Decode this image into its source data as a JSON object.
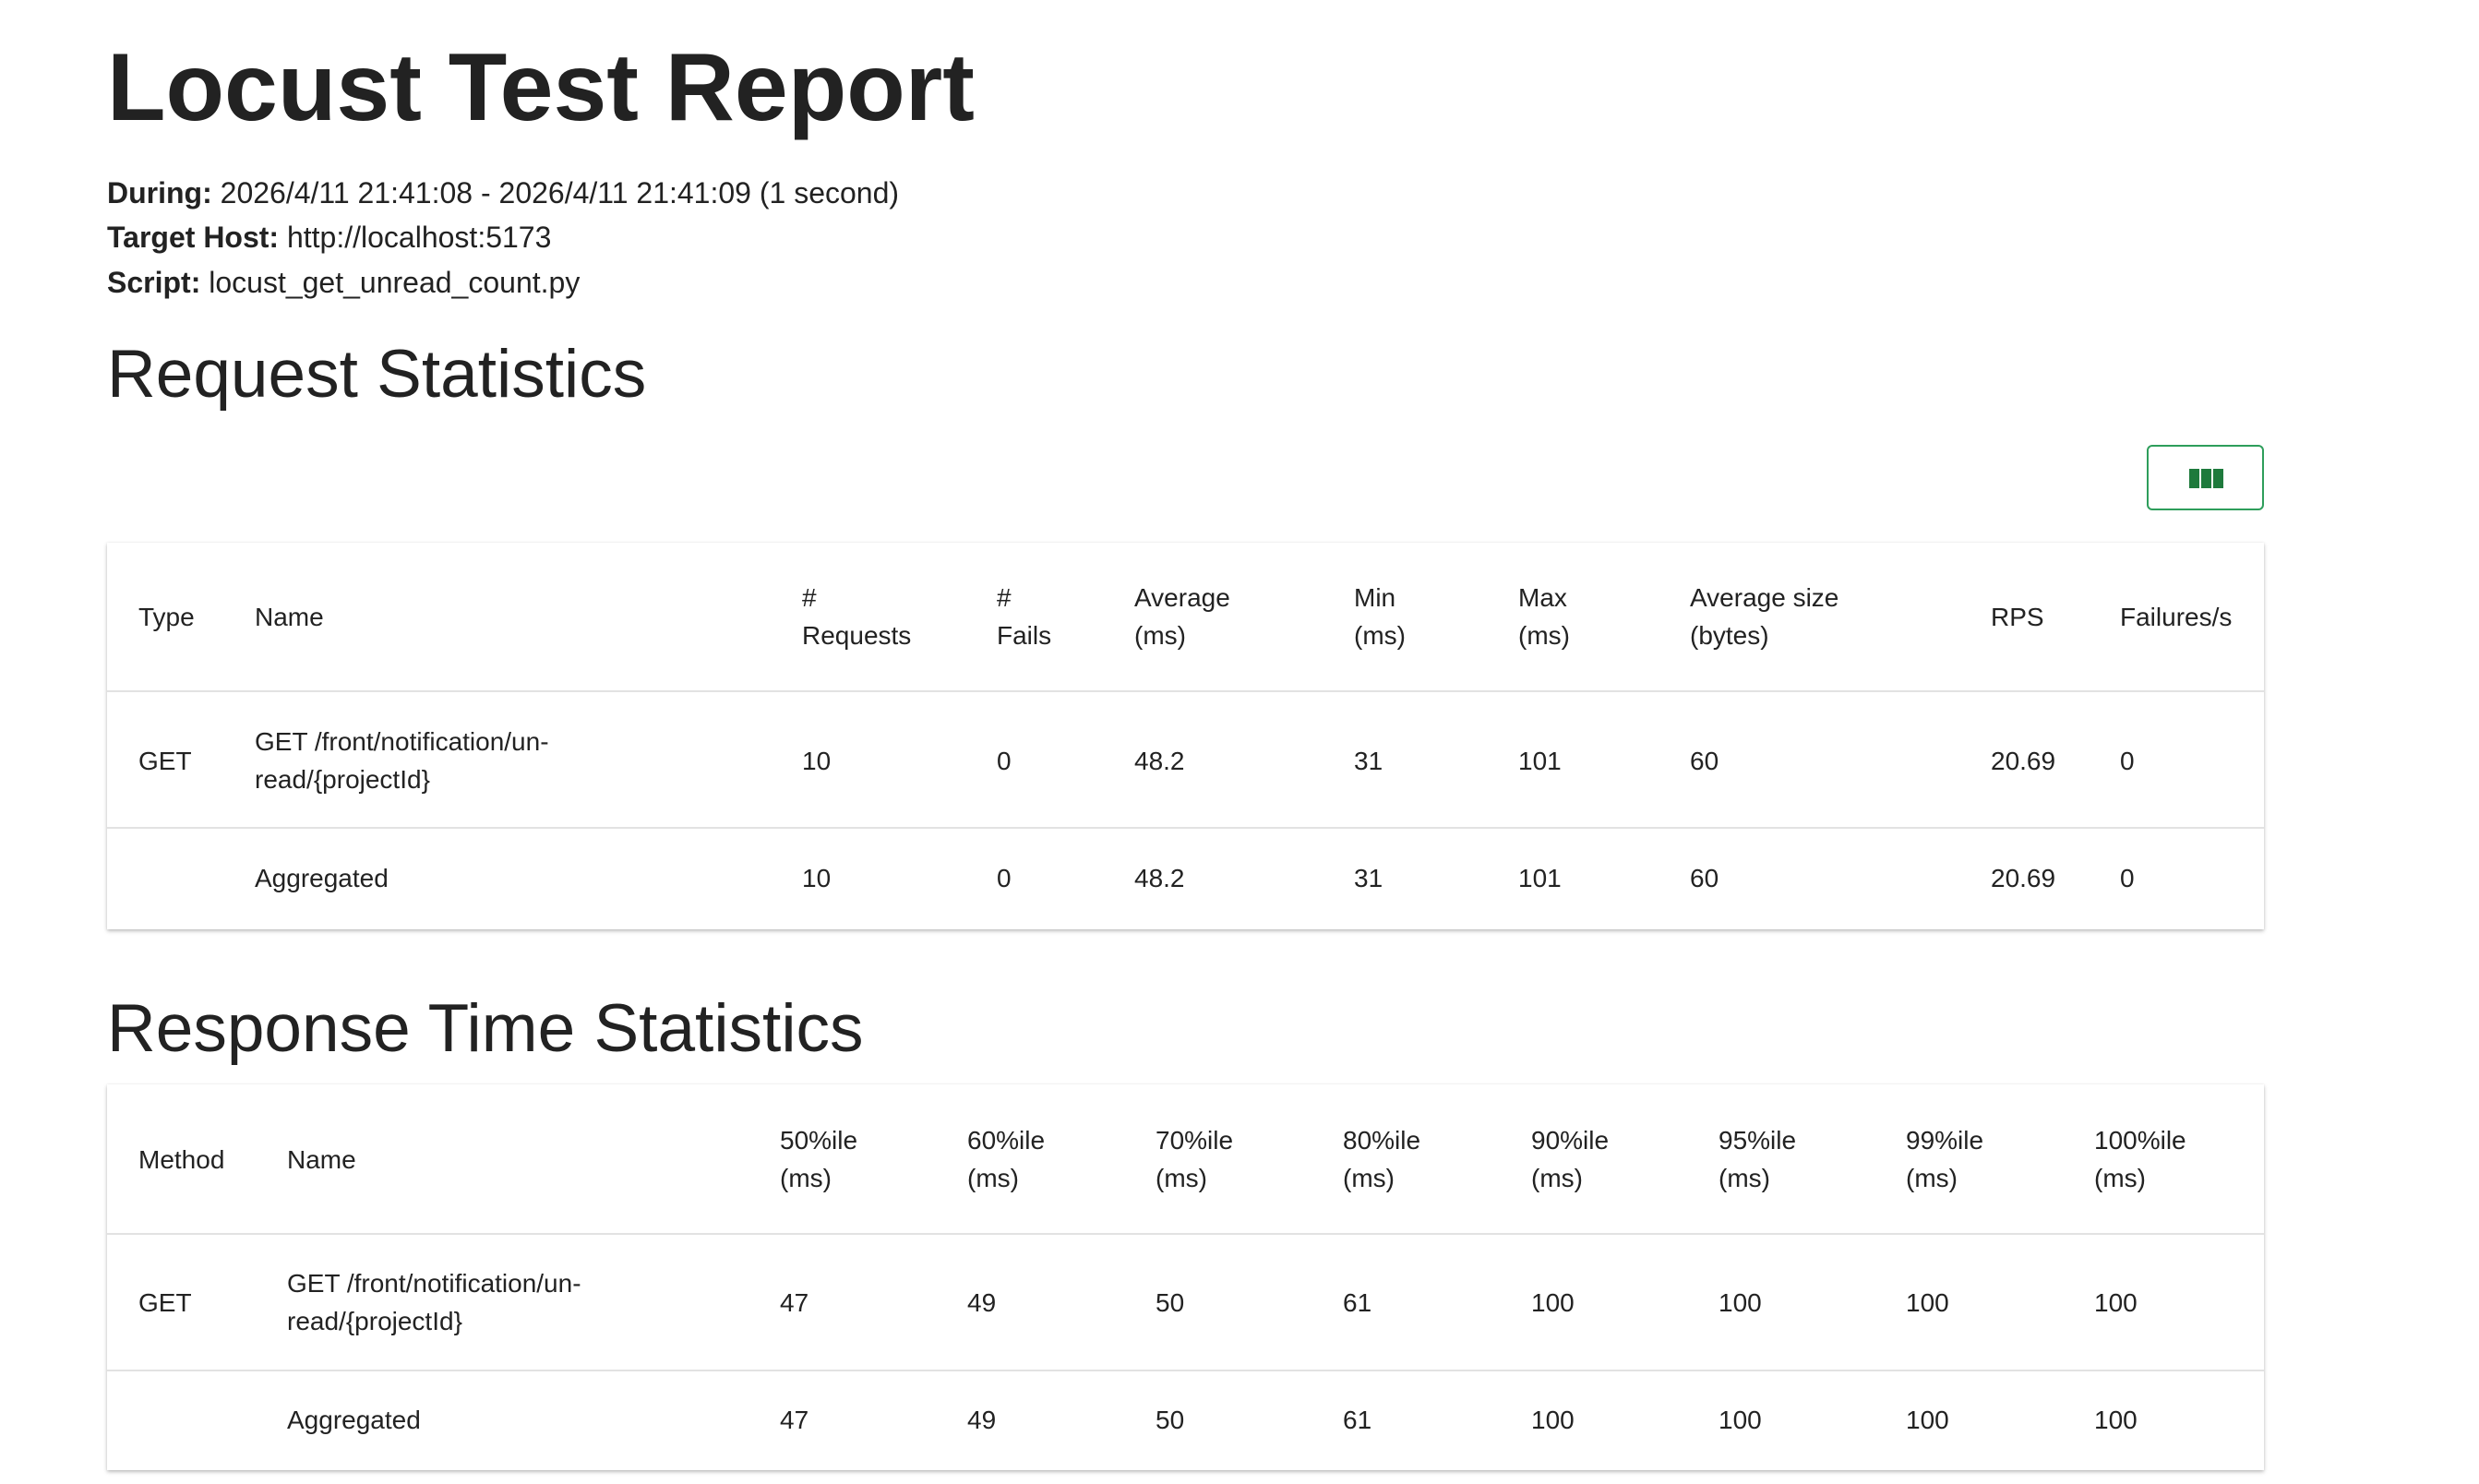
{
  "header": {
    "title": "Locust Test Report",
    "info": [
      {
        "label": "During:",
        "value": "2026/4/11 21:41:08 - 2026/4/11 21:41:09 (1 second)"
      },
      {
        "label": "Target Host:",
        "value": "http://localhost:5173"
      },
      {
        "label": "Script:",
        "value": "locust_get_unread_count.py"
      }
    ]
  },
  "request_stats": {
    "title": "Request Statistics",
    "columns": [
      [
        "Type"
      ],
      [
        "Name"
      ],
      [
        "#",
        "Requests"
      ],
      [
        "#",
        "Fails"
      ],
      [
        "Average",
        "(ms)"
      ],
      [
        "Min",
        "(ms)"
      ],
      [
        "Max",
        "(ms)"
      ],
      [
        "Average size",
        "(bytes)"
      ],
      [
        "RPS"
      ],
      [
        "Failures/s"
      ]
    ],
    "rows": [
      [
        [
          "GET"
        ],
        [
          "GET /front/notification/un-",
          "read/{projectId}"
        ],
        [
          "10"
        ],
        [
          "0"
        ],
        [
          "48.2"
        ],
        [
          "31"
        ],
        [
          "101"
        ],
        [
          "60"
        ],
        [
          "20.69"
        ],
        [
          "0"
        ]
      ],
      [
        [],
        [
          "Aggregated"
        ],
        [
          "10"
        ],
        [
          "0"
        ],
        [
          "48.2"
        ],
        [
          "31"
        ],
        [
          "101"
        ],
        [
          "60"
        ],
        [
          "20.69"
        ],
        [
          "0"
        ]
      ]
    ]
  },
  "response_stats": {
    "title": "Response Time Statistics",
    "columns": [
      [
        "Method"
      ],
      [
        "Name"
      ],
      [
        "50%ile",
        "(ms)"
      ],
      [
        "60%ile",
        "(ms)"
      ],
      [
        "70%ile",
        "(ms)"
      ],
      [
        "80%ile",
        "(ms)"
      ],
      [
        "90%ile",
        "(ms)"
      ],
      [
        "95%ile",
        "(ms)"
      ],
      [
        "99%ile",
        "(ms)"
      ],
      [
        "100%ile",
        "(ms)"
      ]
    ],
    "rows": [
      [
        [
          "GET"
        ],
        [
          "GET /front/notification/un-",
          "read/{projectId}"
        ],
        [
          "47"
        ],
        [
          "49"
        ],
        [
          "50"
        ],
        [
          "61"
        ],
        [
          "100"
        ],
        [
          "100"
        ],
        [
          "100"
        ],
        [
          "100"
        ]
      ],
      [
        [],
        [
          "Aggregated"
        ],
        [
          "47"
        ],
        [
          "49"
        ],
        [
          "50"
        ],
        [
          "61"
        ],
        [
          "100"
        ],
        [
          "100"
        ],
        [
          "100"
        ],
        [
          "100"
        ]
      ]
    ]
  }
}
